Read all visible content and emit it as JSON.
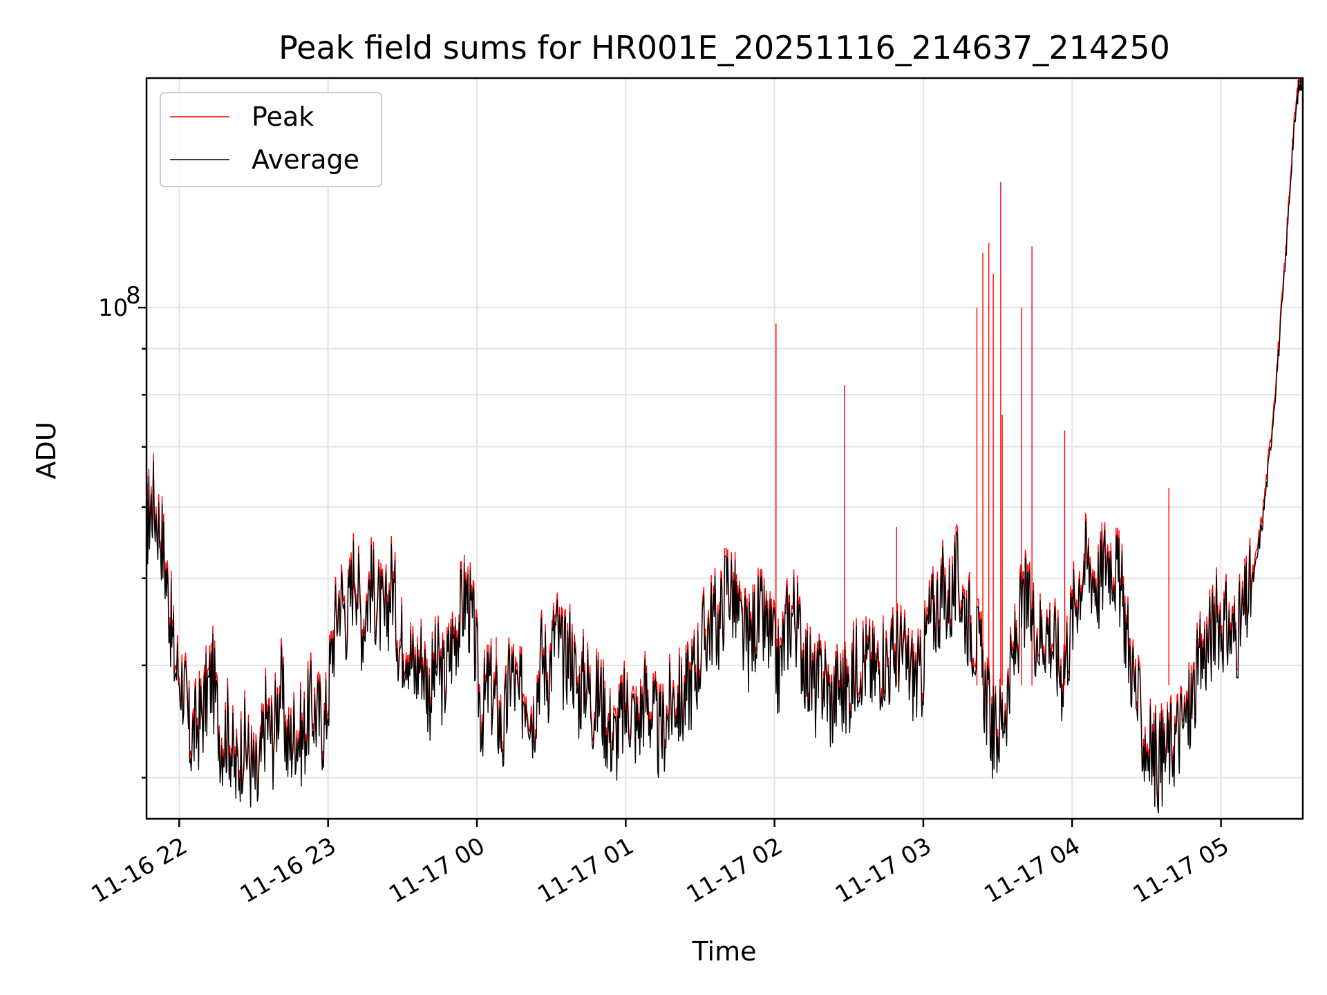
{
  "chart_data": {
    "type": "line",
    "title": "Peak field sums for HR001E_20251116_214637_214250",
    "xlabel": "Time",
    "ylabel": "ADU",
    "yscale": "log",
    "ylim": [
      27000000,
      180000000
    ],
    "xlim_hours": [
      -2.22,
      5.55
    ],
    "x_ticks": [
      {
        "hour": -2,
        "label": "11-16 22"
      },
      {
        "hour": -1,
        "label": "11-16 23"
      },
      {
        "hour": 0,
        "label": "11-17 00"
      },
      {
        "hour": 1,
        "label": "11-17 01"
      },
      {
        "hour": 2,
        "label": "11-17 02"
      },
      {
        "hour": 3,
        "label": "11-17 03"
      },
      {
        "hour": 4,
        "label": "11-17 04"
      },
      {
        "hour": 5,
        "label": "11-17 05"
      }
    ],
    "y_major_ticks": [
      {
        "value": 100000000,
        "base": "10",
        "exp": "8"
      }
    ],
    "y_minor_ticks": [
      30000000,
      40000000,
      50000000,
      60000000,
      70000000,
      80000000,
      90000000,
      200000000
    ],
    "grid": true,
    "legend_position": "upper-left",
    "series": [
      {
        "name": "Peak",
        "color": "#ff0000",
        "spikes": [
          {
            "hour": 0.13,
            "value": 43000000
          },
          {
            "hour": 2.01,
            "value": 96000000
          },
          {
            "hour": 2.47,
            "value": 82000000
          },
          {
            "hour": 2.82,
            "value": 57000000
          },
          {
            "hour": 3.36,
            "value": 100000000
          },
          {
            "hour": 3.4,
            "value": 115000000
          },
          {
            "hour": 3.44,
            "value": 118000000
          },
          {
            "hour": 3.47,
            "value": 109000000
          },
          {
            "hour": 3.52,
            "value": 138000000
          },
          {
            "hour": 3.53,
            "value": 76000000
          },
          {
            "hour": 3.66,
            "value": 100000000
          },
          {
            "hour": 3.73,
            "value": 117000000
          },
          {
            "hour": 3.95,
            "value": 73000000
          },
          {
            "hour": 4.65,
            "value": 63000000
          }
        ]
      },
      {
        "name": "Average",
        "color": "#000000",
        "points": [
          [
            -2.22,
            57000000
          ],
          [
            -2.18,
            61000000
          ],
          [
            -2.12,
            56000000
          ],
          [
            -2.07,
            47000000
          ],
          [
            -2.03,
            40000000
          ],
          [
            -1.97,
            38000000
          ],
          [
            -1.93,
            33000000
          ],
          [
            -1.88,
            34000000
          ],
          [
            -1.83,
            36000000
          ],
          [
            -1.78,
            39000000
          ],
          [
            -1.72,
            33000000
          ],
          [
            -1.67,
            34000000
          ],
          [
            -1.62,
            30000000
          ],
          [
            -1.57,
            33000000
          ],
          [
            -1.52,
            31000000
          ],
          [
            -1.47,
            29000000
          ],
          [
            -1.42,
            35000000
          ],
          [
            -1.37,
            33000000
          ],
          [
            -1.32,
            38000000
          ],
          [
            -1.27,
            32000000
          ],
          [
            -1.22,
            34000000
          ],
          [
            -1.17,
            33000000
          ],
          [
            -1.12,
            36000000
          ],
          [
            -1.07,
            35000000
          ],
          [
            -1.02,
            34000000
          ],
          [
            -0.97,
            42000000
          ],
          [
            -0.92,
            48000000
          ],
          [
            -0.87,
            45000000
          ],
          [
            -0.82,
            52000000
          ],
          [
            -0.77,
            44000000
          ],
          [
            -0.72,
            49000000
          ],
          [
            -0.67,
            47000000
          ],
          [
            -0.62,
            44000000
          ],
          [
            -0.57,
            50000000
          ],
          [
            -0.52,
            42000000
          ],
          [
            -0.47,
            43000000
          ],
          [
            -0.42,
            39000000
          ],
          [
            -0.37,
            41000000
          ],
          [
            -0.32,
            37000000
          ],
          [
            -0.27,
            40000000
          ],
          [
            -0.22,
            38000000
          ],
          [
            -0.17,
            42000000
          ],
          [
            -0.12,
            45000000
          ],
          [
            -0.07,
            48000000
          ],
          [
            -0.02,
            43000000
          ],
          [
            0.03,
            35000000
          ],
          [
            0.08,
            38000000
          ],
          [
            0.13,
            36000000
          ],
          [
            0.18,
            33000000
          ],
          [
            0.23,
            40000000
          ],
          [
            0.28,
            36000000
          ],
          [
            0.33,
            38000000
          ],
          [
            0.38,
            35000000
          ],
          [
            0.43,
            41000000
          ],
          [
            0.48,
            39000000
          ],
          [
            0.53,
            44000000
          ],
          [
            0.58,
            40000000
          ],
          [
            0.63,
            42000000
          ],
          [
            0.68,
            37000000
          ],
          [
            0.73,
            39000000
          ],
          [
            0.78,
            36000000
          ],
          [
            0.83,
            37000000
          ],
          [
            0.88,
            34000000
          ],
          [
            0.93,
            33000000
          ],
          [
            0.98,
            35000000
          ],
          [
            1.03,
            36000000
          ],
          [
            1.08,
            34000000
          ],
          [
            1.13,
            37000000
          ],
          [
            1.18,
            35000000
          ],
          [
            1.23,
            33000000
          ],
          [
            1.28,
            35000000
          ],
          [
            1.33,
            37000000
          ],
          [
            1.38,
            36000000
          ],
          [
            1.43,
            38000000
          ],
          [
            1.48,
            40000000
          ],
          [
            1.53,
            43000000
          ],
          [
            1.58,
            45000000
          ],
          [
            1.63,
            44000000
          ],
          [
            1.68,
            50000000
          ],
          [
            1.73,
            47000000
          ],
          [
            1.78,
            43000000
          ],
          [
            1.83,
            42000000
          ],
          [
            1.88,
            45000000
          ],
          [
            1.93,
            44000000
          ],
          [
            1.98,
            42000000
          ],
          [
            2.03,
            39000000
          ],
          [
            2.08,
            44000000
          ],
          [
            2.13,
            46000000
          ],
          [
            2.18,
            42000000
          ],
          [
            2.23,
            39000000
          ],
          [
            2.28,
            37000000
          ],
          [
            2.33,
            39000000
          ],
          [
            2.38,
            36000000
          ],
          [
            2.43,
            38000000
          ],
          [
            2.48,
            37000000
          ],
          [
            2.53,
            39000000
          ],
          [
            2.58,
            41000000
          ],
          [
            2.63,
            40000000
          ],
          [
            2.68,
            39000000
          ],
          [
            2.73,
            41000000
          ],
          [
            2.78,
            40000000
          ],
          [
            2.83,
            42000000
          ],
          [
            2.88,
            40000000
          ],
          [
            2.93,
            39000000
          ],
          [
            2.98,
            38000000
          ],
          [
            3.03,
            44000000
          ],
          [
            3.08,
            46000000
          ],
          [
            3.13,
            48000000
          ],
          [
            3.18,
            47000000
          ],
          [
            3.23,
            50000000
          ],
          [
            3.28,
            46000000
          ],
          [
            3.33,
            44000000
          ],
          [
            3.38,
            41000000
          ],
          [
            3.43,
            36000000
          ],
          [
            3.48,
            33000000
          ],
          [
            3.53,
            35000000
          ],
          [
            3.58,
            38000000
          ],
          [
            3.63,
            43000000
          ],
          [
            3.68,
            47000000
          ],
          [
            3.73,
            45000000
          ],
          [
            3.78,
            43000000
          ],
          [
            3.83,
            44000000
          ],
          [
            3.88,
            42000000
          ],
          [
            3.93,
            39000000
          ],
          [
            3.98,
            43000000
          ],
          [
            4.03,
            48000000
          ],
          [
            4.08,
            52000000
          ],
          [
            4.13,
            51000000
          ],
          [
            4.18,
            49000000
          ],
          [
            4.23,
            53000000
          ],
          [
            4.28,
            52000000
          ],
          [
            4.33,
            48000000
          ],
          [
            4.38,
            42000000
          ],
          [
            4.43,
            37000000
          ],
          [
            4.48,
            33000000
          ],
          [
            4.53,
            32000000
          ],
          [
            4.58,
            31000000
          ],
          [
            4.63,
            32000000
          ],
          [
            4.68,
            33000000
          ],
          [
            4.73,
            34000000
          ],
          [
            4.78,
            35000000
          ],
          [
            4.83,
            38000000
          ],
          [
            4.88,
            41000000
          ],
          [
            4.93,
            43000000
          ],
          [
            4.98,
            45000000
          ],
          [
            5.03,
            44000000
          ],
          [
            5.08,
            43000000
          ],
          [
            5.13,
            44000000
          ],
          [
            5.18,
            47000000
          ],
          [
            5.23,
            51000000
          ],
          [
            5.28,
            58000000
          ],
          [
            5.33,
            69000000
          ],
          [
            5.38,
            86000000
          ],
          [
            5.43,
            110000000
          ],
          [
            5.48,
            150000000
          ],
          [
            5.52,
            175000000
          ],
          [
            5.55,
            180000000
          ]
        ]
      }
    ]
  }
}
